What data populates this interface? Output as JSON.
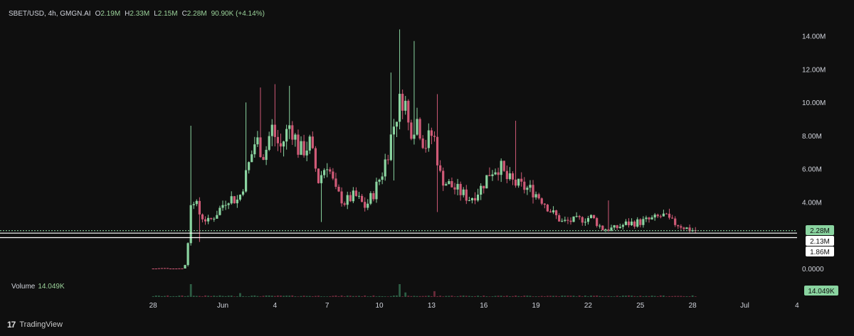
{
  "header": {
    "symbol": "SBET/USD, 4h, GMGN.AI",
    "open_label": "O",
    "open": "2.19M",
    "high_label": "H",
    "high": "2.33M",
    "low_label": "L",
    "low": "2.15M",
    "close_label": "C",
    "close": "2.28M",
    "change": "90.90K (+4.14%)"
  },
  "volume": {
    "label": "Volume",
    "value": "14.049K",
    "badge": "14.049K"
  },
  "footer": {
    "brand": "TradingView",
    "logo": "17"
  },
  "price_axis": {
    "ticks": [
      "14.00M",
      "12.00M",
      "10.00M",
      "8.00M",
      "6.00M",
      "4.00M",
      "0.0000"
    ],
    "tick_values": [
      14,
      12,
      10,
      8,
      6,
      4,
      0
    ]
  },
  "price_badges": [
    {
      "label": "2.28M",
      "value": 2.28,
      "style": "green"
    },
    {
      "label": "2.13M",
      "value": 2.13,
      "style": "white"
    },
    {
      "label": "1.86M",
      "value": 1.86,
      "style": "white"
    }
  ],
  "time_axis": {
    "labels": [
      "28",
      "Jun",
      "4",
      "7",
      "10",
      "13",
      "16",
      "19",
      "22",
      "25",
      "28",
      "Jul",
      "4"
    ],
    "label_days": [
      -4,
      0,
      3,
      6,
      9,
      12,
      15,
      18,
      21,
      24,
      27,
      30,
      33
    ]
  },
  "colors": {
    "up": "#8ad4a0",
    "down": "#d05a77",
    "volume_up": "#2d5d44",
    "volume_down": "#6b2a3a",
    "background": "#0f0f0f"
  },
  "chart_data": {
    "type": "candlestick",
    "title": "SBET/USD, 4h, GMGN.AI",
    "ylim": [
      0,
      14.8
    ],
    "y_unit": "M",
    "x_start_day": -4,
    "candles_per_day": 6,
    "last_close": 2.28,
    "waypoints": [
      [
        -4,
        0.0
      ],
      [
        -2.2,
        0.0
      ],
      [
        -2.0,
        1.5
      ],
      [
        -1.8,
        4.6
      ],
      [
        -1.3,
        3.2
      ],
      [
        -0.8,
        2.8
      ],
      [
        -0.3,
        3.4
      ],
      [
        0.3,
        4.3
      ],
      [
        0.9,
        4.1
      ],
      [
        1.3,
        5.5
      ],
      [
        1.9,
        7.8
      ],
      [
        2.4,
        6.8
      ],
      [
        2.8,
        8.5
      ],
      [
        3.3,
        7.2
      ],
      [
        3.9,
        8.8
      ],
      [
        4.4,
        7.0
      ],
      [
        5.0,
        7.5
      ],
      [
        5.5,
        5.3
      ],
      [
        6.0,
        6.4
      ],
      [
        6.5,
        4.6
      ],
      [
        7.0,
        4.0
      ],
      [
        7.6,
        4.4
      ],
      [
        8.2,
        3.7
      ],
      [
        8.7,
        4.6
      ],
      [
        9.2,
        5.9
      ],
      [
        9.6,
        7.6
      ],
      [
        10.0,
        9.4
      ],
      [
        10.4,
        10.6
      ],
      [
        10.7,
        8.4
      ],
      [
        11.2,
        9.0
      ],
      [
        11.6,
        7.4
      ],
      [
        12.1,
        8.2
      ],
      [
        12.5,
        5.6
      ],
      [
        12.8,
        5.2
      ],
      [
        13.5,
        4.7
      ],
      [
        14.2,
        4.2
      ],
      [
        14.8,
        4.8
      ],
      [
        15.4,
        5.9
      ],
      [
        15.9,
        6.2
      ],
      [
        16.3,
        5.4
      ],
      [
        17.0,
        5.0
      ],
      [
        17.8,
        4.7
      ],
      [
        18.4,
        4.1
      ],
      [
        18.9,
        3.4
      ],
      [
        19.5,
        2.8
      ],
      [
        20.3,
        2.9
      ],
      [
        21.2,
        3.1
      ],
      [
        21.8,
        2.4
      ],
      [
        22.5,
        2.4
      ],
      [
        23.2,
        2.7
      ],
      [
        24.0,
        2.8
      ],
      [
        24.8,
        3.0
      ],
      [
        25.3,
        3.2
      ],
      [
        25.8,
        2.8
      ],
      [
        26.3,
        2.6
      ],
      [
        26.8,
        2.35
      ],
      [
        27.3,
        2.28
      ]
    ],
    "spikes": [
      {
        "day": -1.9,
        "high": 8.6
      },
      {
        "day": 1.3,
        "high": 10.0
      },
      {
        "day": 2.2,
        "high": 10.9
      },
      {
        "day": 3.0,
        "high": 11.1
      },
      {
        "day": 3.8,
        "high": 11.0
      },
      {
        "day": 9.6,
        "high": 11.8
      },
      {
        "day": 10.2,
        "high": 14.4
      },
      {
        "day": 10.95,
        "high": 13.7
      },
      {
        "day": 12.3,
        "high": 10.5
      },
      {
        "day": 16.8,
        "high": 8.9
      },
      {
        "day": 22.2,
        "high": 4.1
      },
      {
        "day": 25.6,
        "high": 3.6
      }
    ],
    "lows": [
      {
        "day": -1.3,
        "low": 1.6
      },
      {
        "day": 5.7,
        "low": 2.8
      },
      {
        "day": 9.8,
        "low": 5.3
      },
      {
        "day": 12.3,
        "low": 3.4
      }
    ],
    "volume_spikes": [
      {
        "day": -1.9,
        "v": 1.0
      },
      {
        "day": 10.2,
        "v": 1.0
      },
      {
        "day": 10.5,
        "v": 0.35
      },
      {
        "day": 12.1,
        "v": 0.45
      },
      {
        "day": 1.0,
        "v": 0.3
      }
    ]
  }
}
